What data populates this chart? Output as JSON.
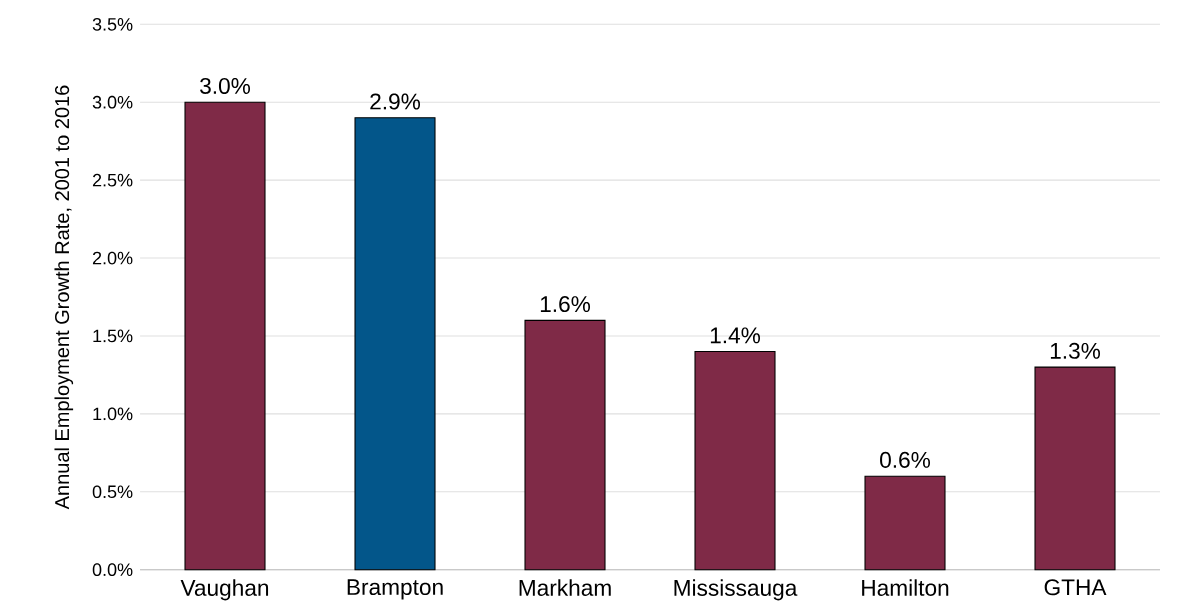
{
  "chart_data": {
    "type": "bar",
    "ylabel": "Annual Employment Growth Rate, 2001 to 2016",
    "categories": [
      "Vaughan",
      "Brampton",
      "Markham",
      "Mississauga",
      "Hamilton",
      "GTHA"
    ],
    "values": [
      3.0,
      2.9,
      1.6,
      1.4,
      0.6,
      1.3
    ],
    "colors": [
      "#7f2a47",
      "#03568a",
      "#7f2a47",
      "#7f2a47",
      "#7f2a47",
      "#7f2a47"
    ],
    "value_labels": [
      "3.0%",
      "2.9%",
      "1.6%",
      "1.4%",
      "0.6%",
      "1.3%"
    ],
    "ylim": [
      0,
      3.5
    ],
    "yticks": [
      {
        "value": 0,
        "label": "0.0%"
      },
      {
        "value": 0.5,
        "label": "0.5%"
      },
      {
        "value": 1.0,
        "label": "1.0%"
      },
      {
        "value": 1.5,
        "label": "1.5%"
      },
      {
        "value": 2.0,
        "label": "2.0%"
      },
      {
        "value": 2.5,
        "label": "2.5%"
      },
      {
        "value": 3.0,
        "label": "3.0%"
      },
      {
        "value": 3.5,
        "label": "3.5%"
      }
    ],
    "grid": "y"
  }
}
